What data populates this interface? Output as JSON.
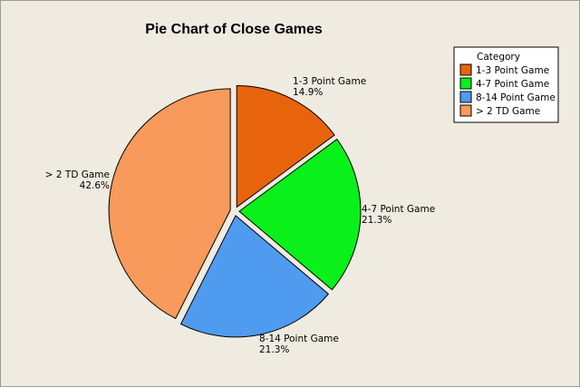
{
  "chart_data": {
    "type": "pie",
    "title": "Pie Chart of Close Games",
    "legend_title": "Category",
    "legend_position": "top-right",
    "start_angle_deg": 0,
    "direction": "clockwise",
    "exploded": true,
    "slices": [
      {
        "label": "1-3 Point Game",
        "percent_label": "14.9%",
        "value": 14.9,
        "color": "#e8640c"
      },
      {
        "label": "4-7 Point Game",
        "percent_label": "21.3%",
        "value": 21.3,
        "color": "#0af01a"
      },
      {
        "label": "8-14 Point Game",
        "percent_label": "21.3%",
        "value": 21.3,
        "color": "#4f9bf0"
      },
      {
        "label": "> 2 TD Game",
        "percent_label": "42.6%",
        "value": 42.6,
        "color": "#f79a5c"
      }
    ]
  }
}
